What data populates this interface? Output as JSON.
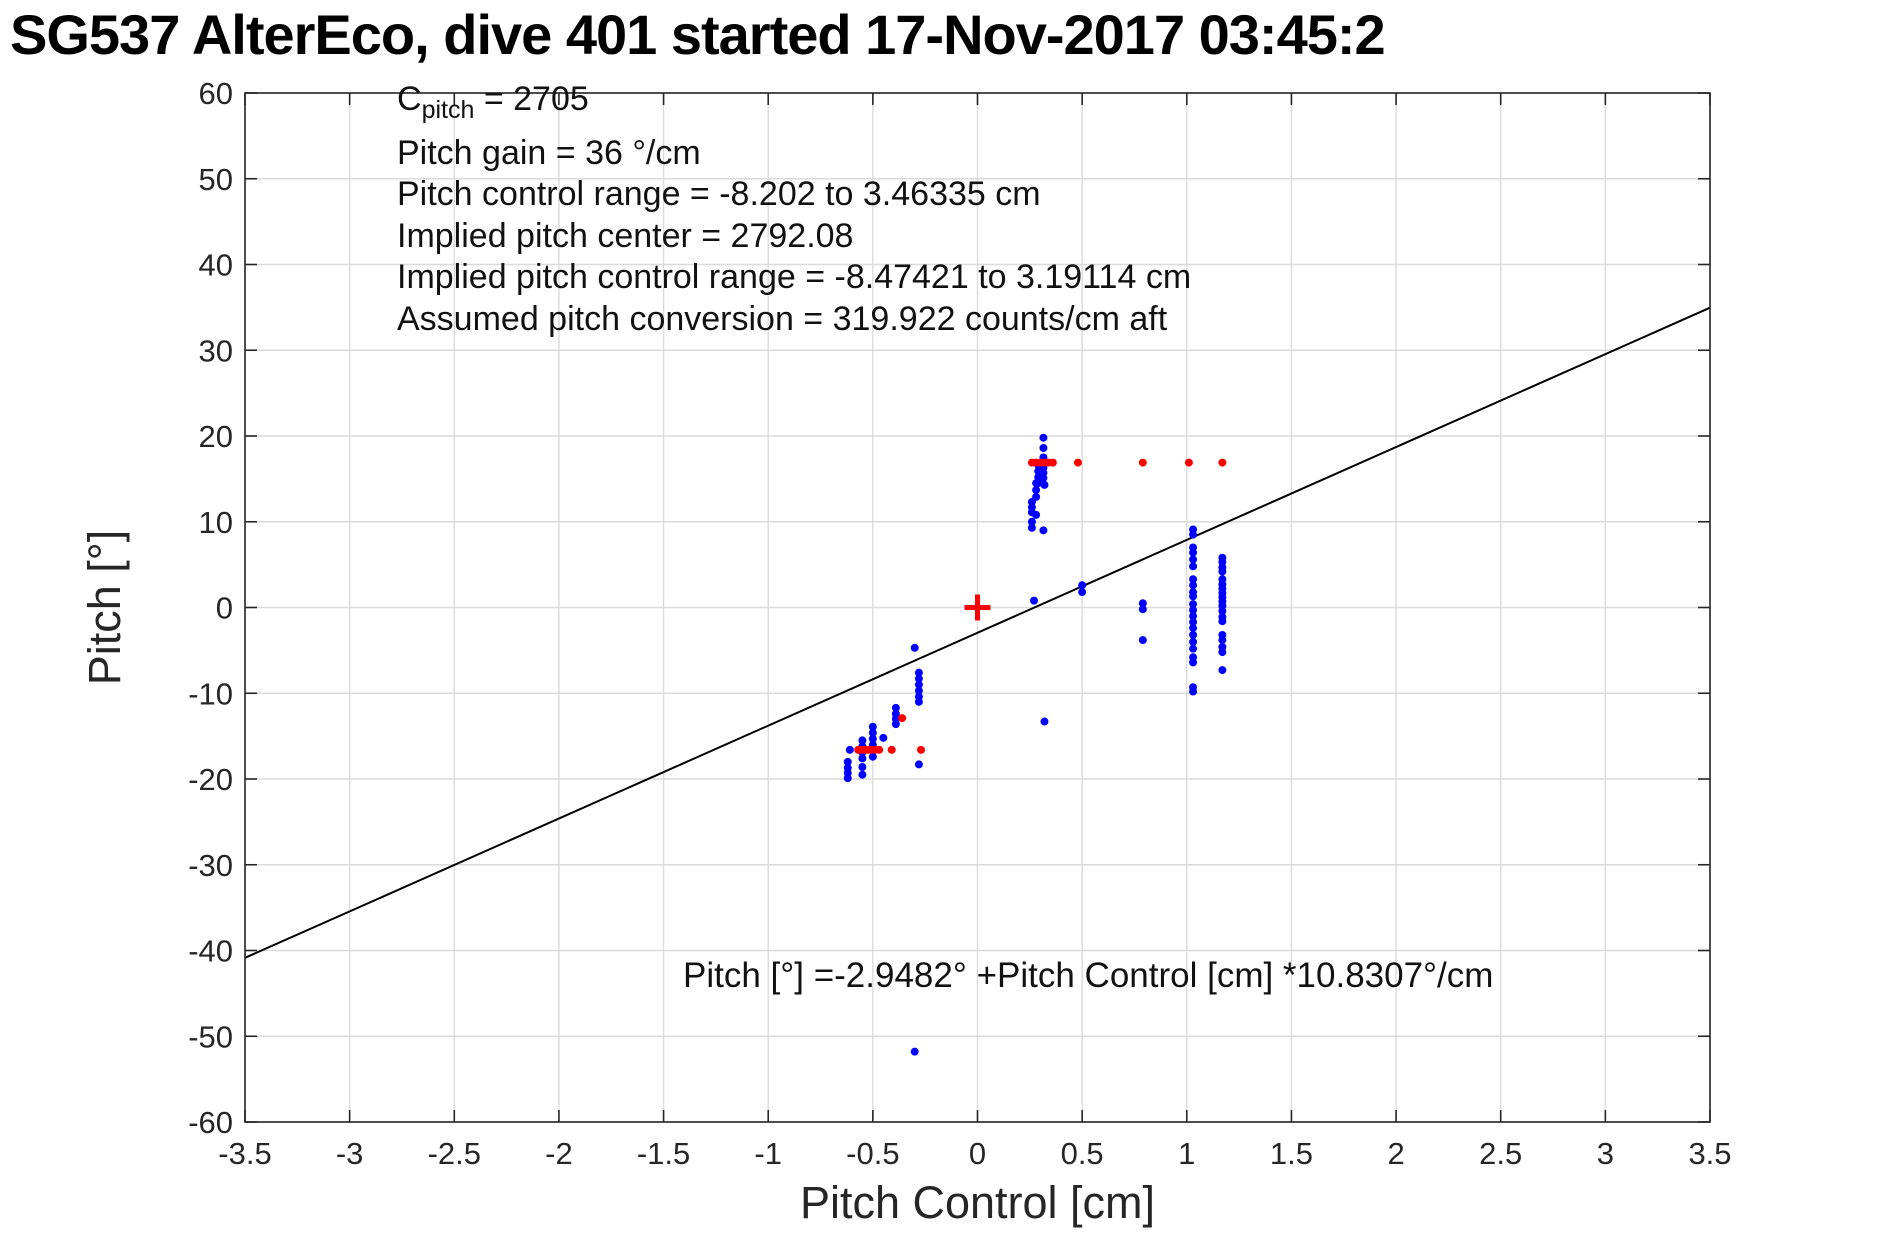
{
  "chart_data": {
    "type": "scatter",
    "title": "SG537 AlterEco, dive 401 started 17-Nov-2017 03:45:2",
    "xlabel": "Pitch Control [cm]",
    "ylabel": "Pitch [°]",
    "xlim": [
      -3.5,
      3.5
    ],
    "ylim": [
      -60,
      60
    ],
    "x_ticks": [
      -3.5,
      -3,
      -2.5,
      -2,
      -1.5,
      -1,
      -0.5,
      0,
      0.5,
      1,
      1.5,
      2,
      2.5,
      3,
      3.5
    ],
    "x_tick_labels": [
      "-3.5",
      "-3",
      "-2.5",
      "-2",
      "-1.5",
      "-1",
      "-0.5",
      "0",
      "0.5",
      "1",
      "1.5",
      "2",
      "2.5",
      "3",
      "3.5"
    ],
    "y_ticks": [
      -60,
      -50,
      -40,
      -30,
      -20,
      -10,
      0,
      10,
      20,
      30,
      40,
      50,
      60
    ],
    "y_tick_labels": [
      "-60",
      "-50",
      "-40",
      "-30",
      "-20",
      "-10",
      "0",
      "10",
      "20",
      "30",
      "40",
      "50",
      "60"
    ],
    "grid": true,
    "legend": "none",
    "colors": {
      "observed": "#0000ff",
      "reference": "#ff0000",
      "fit_line": "#000000",
      "grid": "#dbdbdb",
      "axis": "#262626",
      "title": "#000000"
    },
    "annotations": {
      "c_pitch": {
        "base": "C",
        "sub": "pitch",
        "rest": " = 2705"
      },
      "info_lines": [
        "Pitch gain = 36 °/cm",
        "Pitch control range = -8.202 to 3.46335 cm",
        "Implied pitch center = 2792.08",
        "Implied pitch control range = -8.47421 to 3.19114 cm",
        "Assumed pitch conversion = 319.922 counts/cm aft"
      ],
      "fit_equation": "Pitch [°] =-2.9482° +Pitch Control [cm] *10.8307°/cm"
    },
    "fit_line": {
      "slope": 10.8307,
      "intercept": -2.9482,
      "x_range": [
        -3.5,
        3.5
      ],
      "color": "#000000",
      "width": 2
    },
    "origin_marker": {
      "x": 0,
      "y": 0,
      "marker": "+",
      "color": "#ff0000",
      "half_size_px": 13,
      "stroke_px": 5
    },
    "series": [
      {
        "name": "pitch-observations",
        "color": "#0000ff",
        "marker": "dot",
        "radius_px": 4,
        "points": [
          [
            0.315,
            19.8
          ],
          [
            0.315,
            18.6
          ],
          [
            0.315,
            17.5
          ],
          [
            0.315,
            16.9
          ],
          [
            0.315,
            16.3
          ],
          [
            0.315,
            15.7
          ],
          [
            0.315,
            15.1
          ],
          [
            0.32,
            14.3
          ],
          [
            0.29,
            16.6
          ],
          [
            0.29,
            15.9
          ],
          [
            0.29,
            15.2
          ],
          [
            0.29,
            14.5
          ],
          [
            0.28,
            14.5
          ],
          [
            0.28,
            13.7
          ],
          [
            0.28,
            12.9
          ],
          [
            0.28,
            10.8
          ],
          [
            0.26,
            12.3
          ],
          [
            0.26,
            11.7
          ],
          [
            0.26,
            11.1
          ],
          [
            0.26,
            10.0
          ],
          [
            0.26,
            9.3
          ],
          [
            0.315,
            9.0
          ],
          [
            0.27,
            0.8
          ],
          [
            0.5,
            2.6
          ],
          [
            0.5,
            1.8
          ],
          [
            0.79,
            0.5
          ],
          [
            0.79,
            -0.2
          ],
          [
            0.79,
            -3.8
          ],
          [
            -0.3,
            -4.7
          ],
          [
            0.32,
            -13.3
          ],
          [
            -0.28,
            -7.6
          ],
          [
            -0.28,
            -8.3
          ],
          [
            -0.28,
            -9.0
          ],
          [
            -0.28,
            -9.7
          ],
          [
            -0.28,
            -10.4
          ],
          [
            -0.28,
            -11.0
          ],
          [
            -0.28,
            -18.3
          ],
          [
            -0.39,
            -11.7
          ],
          [
            -0.39,
            -12.4
          ],
          [
            -0.39,
            -13.0
          ],
          [
            -0.39,
            -13.6
          ],
          [
            -0.45,
            -15.2
          ],
          [
            -0.5,
            -13.9
          ],
          [
            -0.5,
            -14.6
          ],
          [
            -0.5,
            -15.3
          ],
          [
            -0.5,
            -16.0
          ],
          [
            -0.5,
            -16.7
          ],
          [
            -0.5,
            -17.4
          ],
          [
            -0.55,
            -15.5
          ],
          [
            -0.55,
            -16.2
          ],
          [
            -0.55,
            -16.9
          ],
          [
            -0.55,
            -17.6
          ],
          [
            -0.55,
            -18.6
          ],
          [
            -0.55,
            -19.5
          ],
          [
            -0.61,
            -16.6
          ],
          [
            -0.62,
            -18.0
          ],
          [
            -0.62,
            -18.7
          ],
          [
            -0.62,
            -19.3
          ],
          [
            -0.62,
            -19.9
          ],
          [
            1.03,
            9.1
          ],
          [
            1.03,
            8.5
          ],
          [
            1.03,
            7.0
          ],
          [
            1.03,
            6.4
          ],
          [
            1.03,
            5.6
          ],
          [
            1.03,
            4.8
          ],
          [
            1.03,
            3.3
          ],
          [
            1.03,
            2.6
          ],
          [
            1.03,
            1.8
          ],
          [
            1.03,
            1.3
          ],
          [
            1.03,
            0.4
          ],
          [
            1.03,
            -0.3
          ],
          [
            1.03,
            -1.0
          ],
          [
            1.03,
            -1.7
          ],
          [
            1.03,
            -2.4
          ],
          [
            1.03,
            -3.2
          ],
          [
            1.03,
            -4.0
          ],
          [
            1.03,
            -4.8
          ],
          [
            1.03,
            -5.8
          ],
          [
            1.03,
            -6.4
          ],
          [
            1.03,
            -9.3
          ],
          [
            1.03,
            -9.8
          ],
          [
            1.17,
            5.8
          ],
          [
            1.17,
            5.3
          ],
          [
            1.17,
            4.7
          ],
          [
            1.17,
            4.2
          ],
          [
            1.17,
            3.3
          ],
          [
            1.17,
            2.7
          ],
          [
            1.17,
            2.2
          ],
          [
            1.17,
            1.7
          ],
          [
            1.17,
            1.2
          ],
          [
            1.17,
            0.7
          ],
          [
            1.17,
            0.2
          ],
          [
            1.17,
            -0.4
          ],
          [
            1.17,
            -1.1
          ],
          [
            1.17,
            -1.6
          ],
          [
            1.17,
            -3.2
          ],
          [
            1.17,
            -3.8
          ],
          [
            1.17,
            -4.6
          ],
          [
            1.17,
            -5.2
          ],
          [
            1.17,
            -7.3
          ],
          [
            -0.3,
            -51.8
          ]
        ]
      },
      {
        "name": "pitch-control-targets",
        "color": "#ff0000",
        "marker": "dot",
        "radius_px": 4,
        "points": [
          [
            0.26,
            16.9
          ],
          [
            0.28,
            16.9
          ],
          [
            0.3,
            16.9
          ],
          [
            0.32,
            16.9
          ],
          [
            0.34,
            16.9
          ],
          [
            0.36,
            16.9
          ],
          [
            0.48,
            16.9
          ],
          [
            0.79,
            16.9
          ],
          [
            1.01,
            16.9
          ],
          [
            1.17,
            16.9
          ],
          [
            -0.57,
            -16.6
          ],
          [
            -0.555,
            -16.6
          ],
          [
            -0.54,
            -16.6
          ],
          [
            -0.525,
            -16.6
          ],
          [
            -0.51,
            -16.6
          ],
          [
            -0.49,
            -16.6
          ],
          [
            -0.47,
            -16.6
          ],
          [
            -0.41,
            -16.6
          ],
          [
            -0.27,
            -16.6
          ],
          [
            -0.36,
            -12.9
          ]
        ]
      }
    ]
  }
}
